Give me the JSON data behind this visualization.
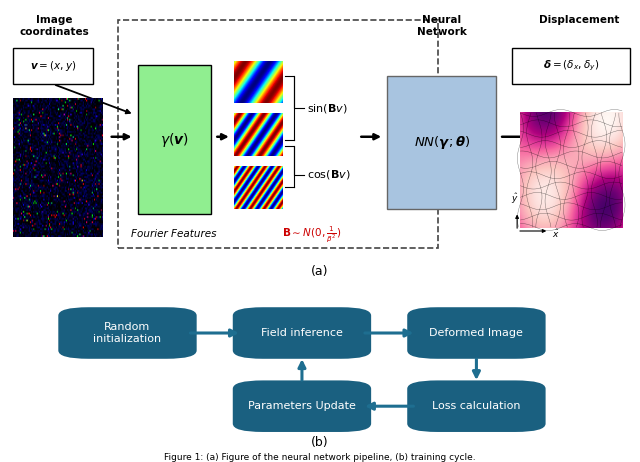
{
  "bg_color": "#ffffff",
  "title_a": "(a)",
  "title_b": "(b)",
  "fig_caption": "Figure 1: (a) Figure of the neural network pipeline, (b) training cycle.",
  "img_coord_label": "Image\ncoordinates",
  "neural_net_label": "Neural\nNetwork",
  "displacement_label": "Displacement",
  "fourier_label": "Fourier Features",
  "flow_box_color": "#1a6080",
  "flow_box_text_color": "#ffffff",
  "green_box_color": "#90EE90",
  "blue_box_color": "#a8c4e0",
  "dashed_box_color": "#444444",
  "arrow_color": "#000000",
  "flow_arrow_color": "#1e6e90"
}
